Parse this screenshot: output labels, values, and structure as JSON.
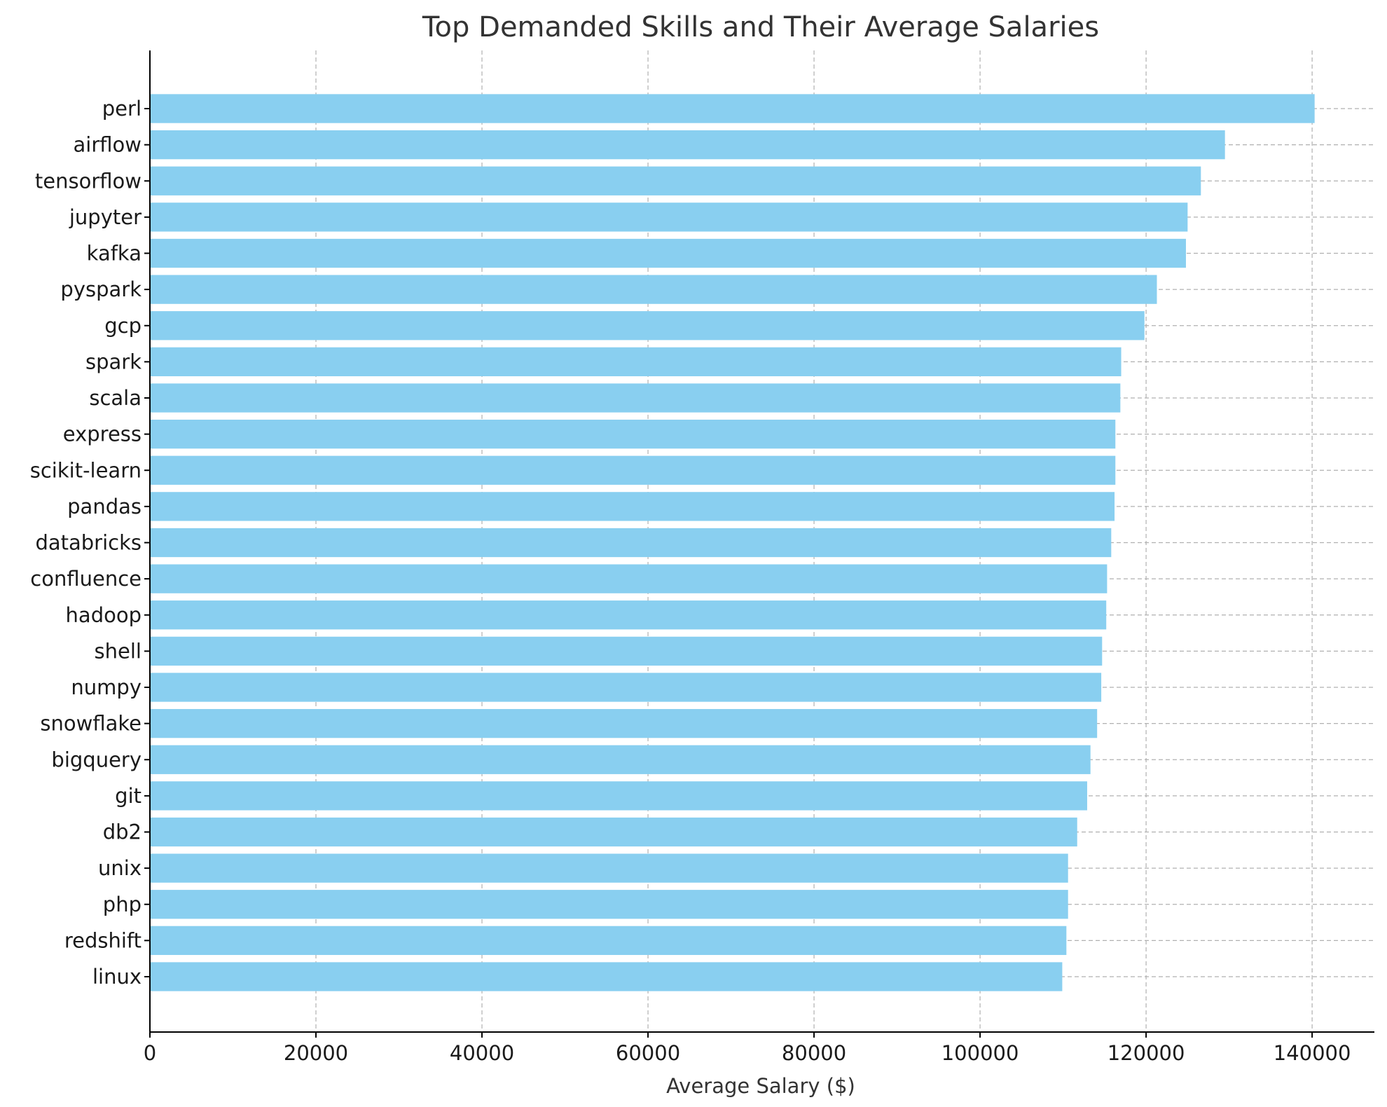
{
  "chart_data": {
    "type": "bar",
    "orientation": "horizontal",
    "title": "Top Demanded Skills and Their Average Salaries",
    "xlabel": "Average Salary ($)",
    "ylabel": "",
    "xlim": [
      0,
      147500
    ],
    "xticks": [
      0,
      20000,
      40000,
      60000,
      80000,
      100000,
      120000,
      140000
    ],
    "grid": true,
    "bar_color": "#89CFF0",
    "categories": [
      "perl",
      "airflow",
      "tensorflow",
      "jupyter",
      "kafka",
      "pyspark",
      "gcp",
      "spark",
      "scala",
      "express",
      "scikit-learn",
      "pandas",
      "databricks",
      "confluence",
      "hadoop",
      "shell",
      "numpy",
      "snowflake",
      "bigquery",
      "git",
      "db2",
      "unix",
      "php",
      "redshift",
      "linux"
    ],
    "values": [
      140300,
      129500,
      126600,
      125000,
      124800,
      121300,
      119800,
      117000,
      116900,
      116300,
      116300,
      116200,
      115800,
      115300,
      115200,
      114700,
      114600,
      114100,
      113300,
      112900,
      111700,
      110600,
      110600,
      110400,
      109900
    ]
  }
}
